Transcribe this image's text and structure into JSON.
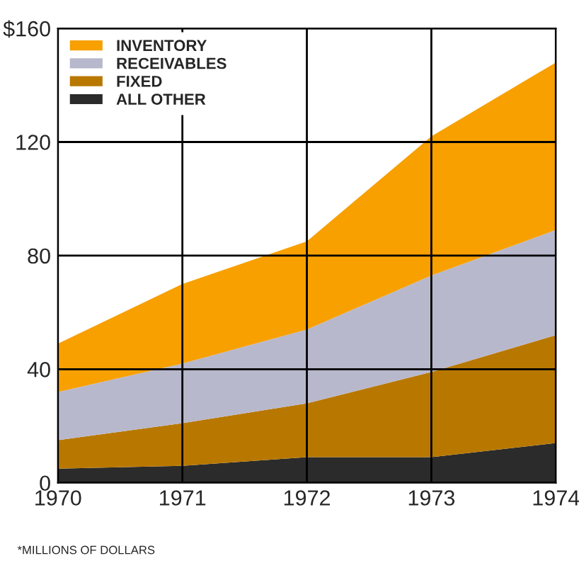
{
  "chart_data": {
    "type": "area",
    "stacked": true,
    "x": [
      1970,
      1971,
      1972,
      1973,
      1974
    ],
    "series": [
      {
        "name": "ALL OTHER",
        "color": "#2b2b2b",
        "values": [
          5,
          6,
          9,
          9,
          14
        ]
      },
      {
        "name": "FIXED",
        "color": "#b87800",
        "values": [
          10,
          15,
          19,
          30,
          38
        ]
      },
      {
        "name": "RECEIVABLES",
        "color": "#b8b8cc",
        "values": [
          17,
          21,
          26,
          34,
          37
        ]
      },
      {
        "name": "INVENTORY",
        "color": "#f7a000",
        "values": [
          17,
          28,
          31,
          49,
          59
        ]
      }
    ],
    "xlim": [
      1970,
      1974
    ],
    "xticks": [
      1970,
      1971,
      1972,
      1973,
      1974
    ],
    "ylim": [
      0,
      160
    ],
    "yticks": [
      0,
      40,
      80,
      120,
      {
        "value": 160,
        "label": "$160"
      }
    ],
    "grid": true,
    "legend": "top left",
    "annotations": [
      "*MILLIONS OF DOLLARS"
    ]
  }
}
